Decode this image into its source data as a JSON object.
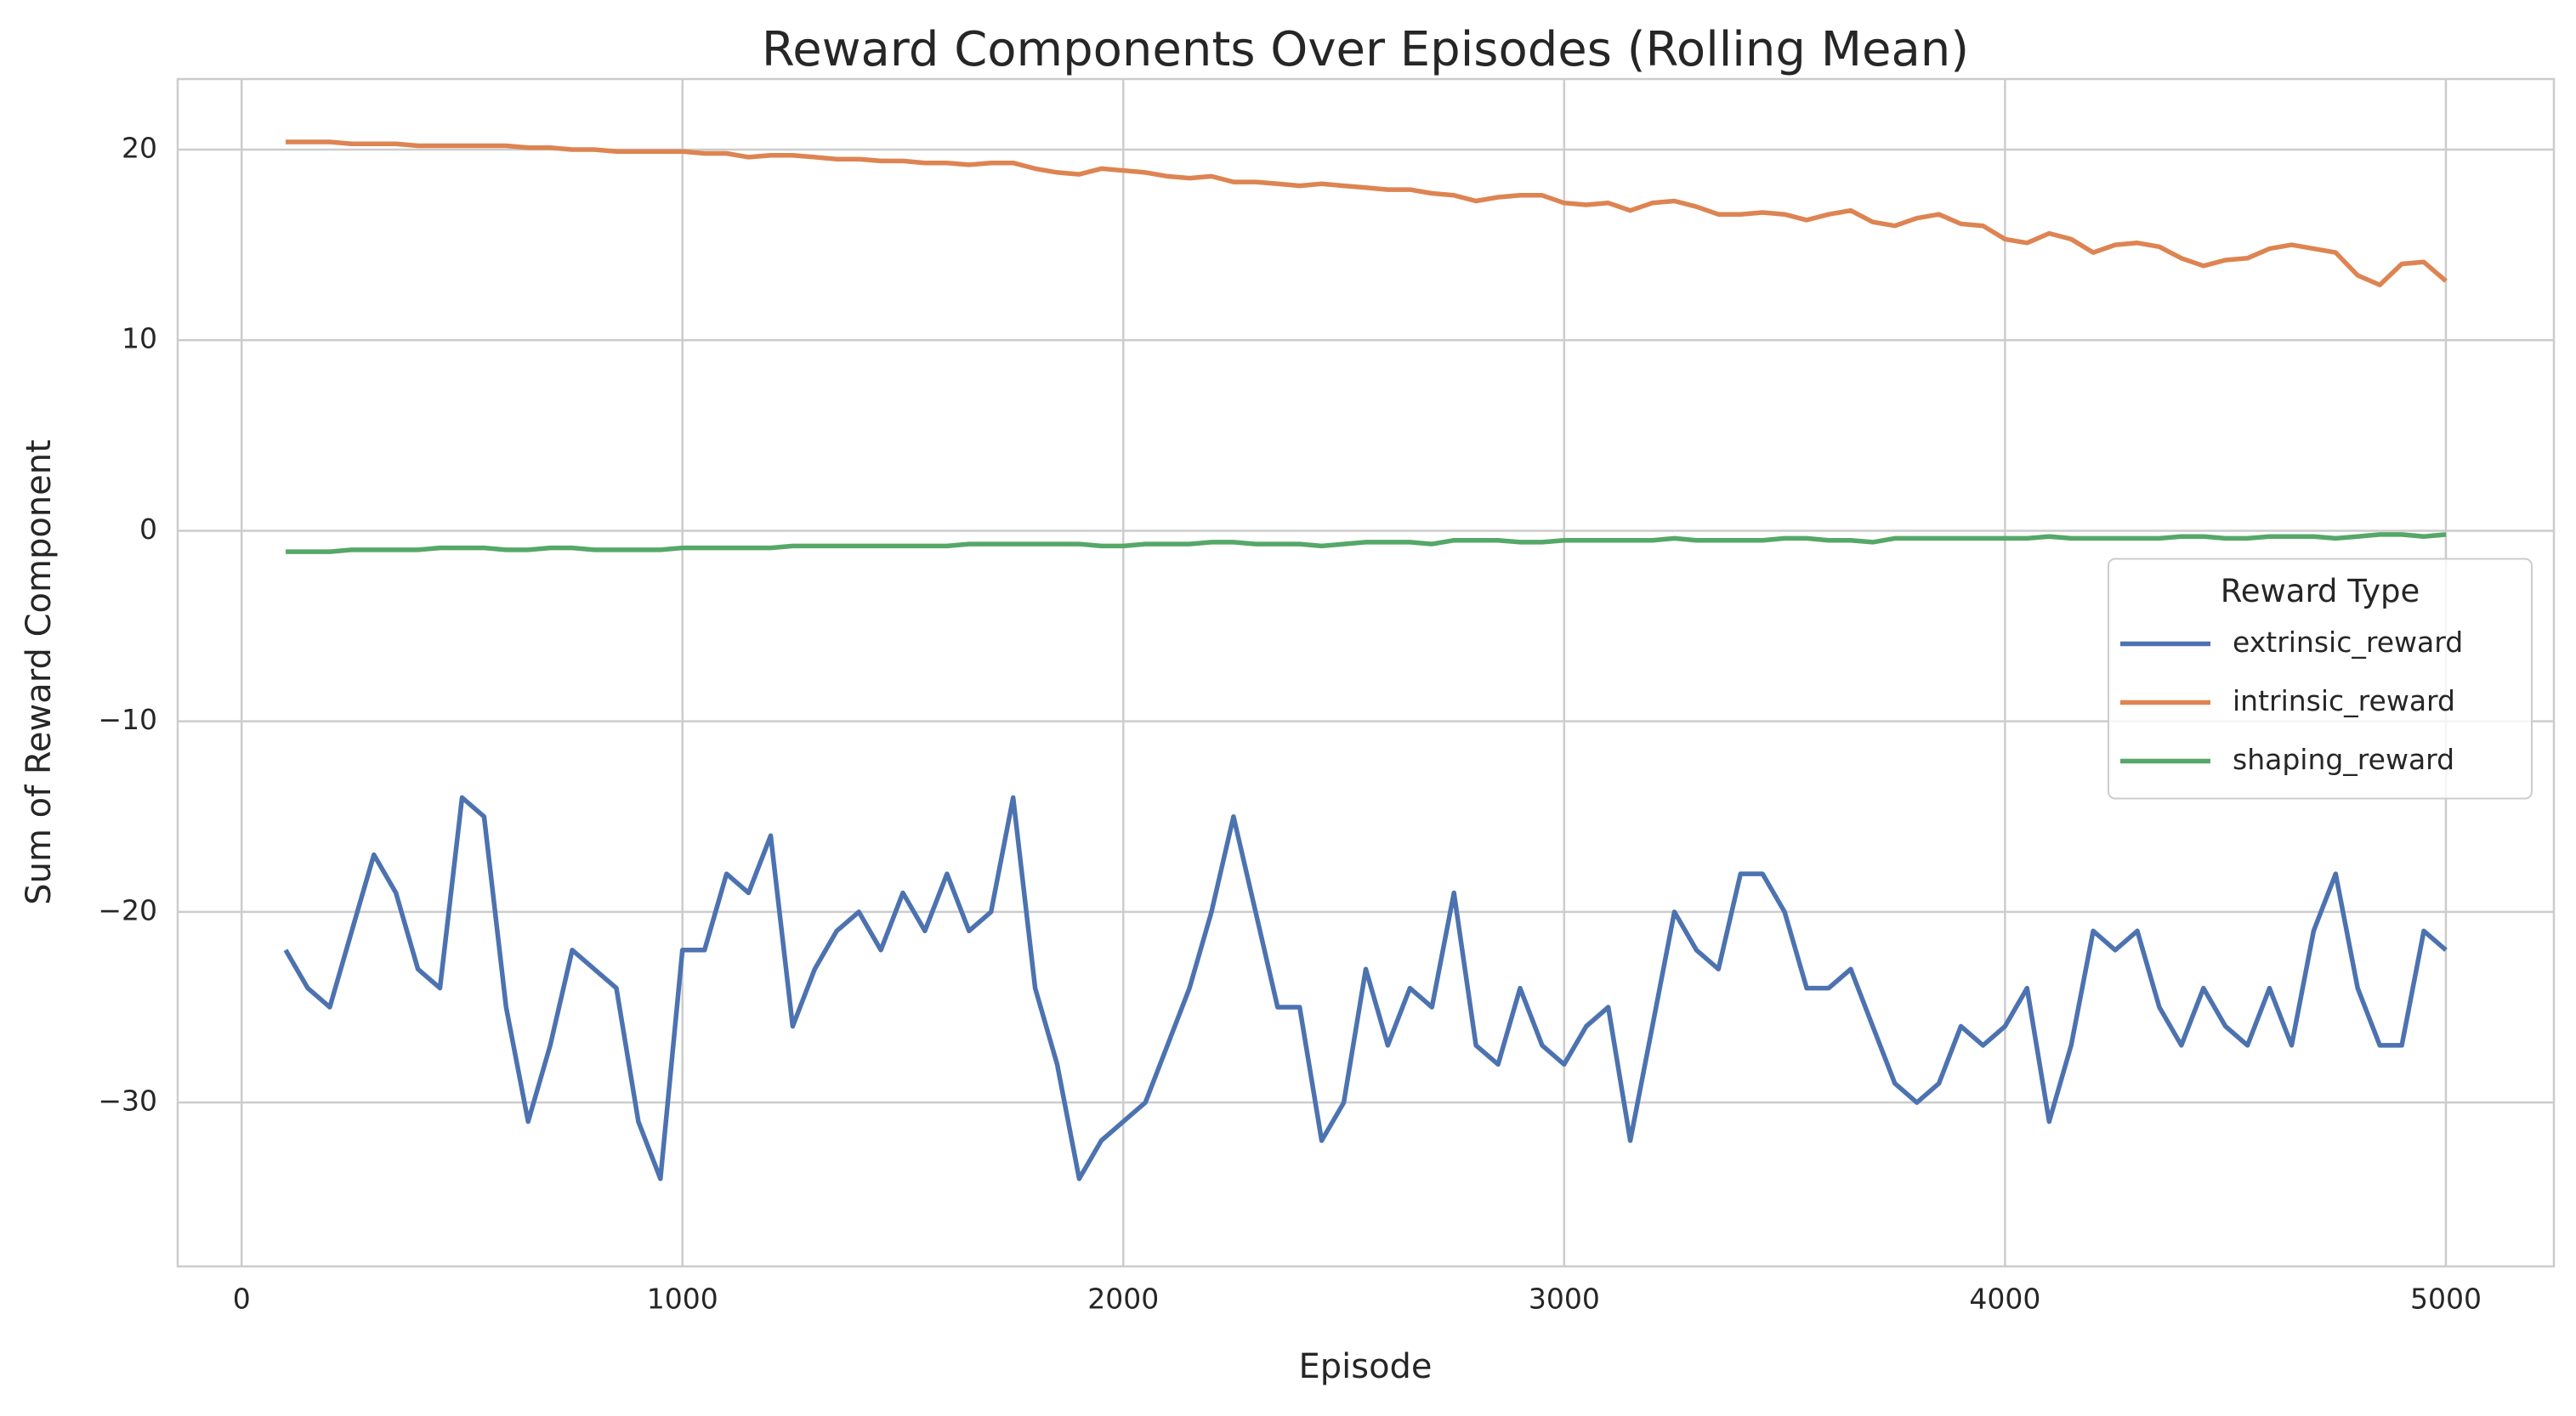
{
  "chart_data": {
    "type": "line",
    "title": "Reward Components Over Episodes (Rolling Mean)",
    "x_label": "Episode",
    "y_label": "Sum of Reward Component",
    "legend_title": "Reward Type",
    "legend": "center right",
    "grid": true,
    "xlim": [
      -145,
      5245
    ],
    "xticks": [
      0,
      1000,
      2000,
      3000,
      4000,
      5000
    ],
    "ylim": [
      -38.6,
      23.7
    ],
    "yticks": [
      {
        "value": -30,
        "label": "−30"
      },
      {
        "value": -20,
        "label": "−20"
      },
      {
        "value": -10,
        "label": "−10"
      },
      0,
      10,
      20
    ],
    "x": [
      100,
      150,
      200,
      250,
      300,
      350,
      400,
      450,
      500,
      550,
      600,
      650,
      700,
      750,
      800,
      850,
      900,
      950,
      1000,
      1050,
      1100,
      1150,
      1200,
      1250,
      1300,
      1350,
      1400,
      1450,
      1500,
      1550,
      1600,
      1650,
      1700,
      1750,
      1800,
      1850,
      1900,
      1950,
      2000,
      2050,
      2100,
      2150,
      2200,
      2250,
      2300,
      2350,
      2400,
      2450,
      2500,
      2550,
      2600,
      2650,
      2700,
      2750,
      2800,
      2850,
      2900,
      2950,
      3000,
      3050,
      3100,
      3150,
      3200,
      3250,
      3300,
      3350,
      3400,
      3450,
      3500,
      3550,
      3600,
      3650,
      3700,
      3750,
      3800,
      3850,
      3900,
      3950,
      4000,
      4050,
      4100,
      4150,
      4200,
      4250,
      4300,
      4350,
      4400,
      4450,
      4500,
      4550,
      4600,
      4650,
      4700,
      4750,
      4800,
      4850,
      4900,
      4950,
      5000
    ],
    "series": [
      {
        "name": "extrinsic_reward",
        "color": "#4c72b0",
        "values": [
          -22,
          -24,
          -25,
          -21,
          -17,
          -19,
          -23,
          -24,
          -14,
          -15,
          -25,
          -31,
          -27,
          -22,
          -23,
          -24,
          -31,
          -34,
          -22,
          -22,
          -18,
          -19,
          -16,
          -26,
          -23,
          -21,
          -20,
          -22,
          -19,
          -21,
          -18,
          -21,
          -20,
          -14,
          -24,
          -28,
          -34,
          -32,
          -31,
          -30,
          -27,
          -24,
          -20,
          -15,
          -20,
          -25,
          -25,
          -32,
          -30,
          -23,
          -27,
          -24,
          -25,
          -19,
          -27,
          -28,
          -24,
          -27,
          -28,
          -26,
          -25,
          -32,
          -26,
          -20,
          -22,
          -23,
          -18,
          -18,
          -20,
          -24,
          -24,
          -23,
          -26,
          -29,
          -30,
          -29,
          -26,
          -27,
          -26,
          -24,
          -31,
          -27,
          -21,
          -22,
          -21,
          -25,
          -27,
          -24,
          -26,
          -27,
          -24,
          -27,
          -21,
          -18,
          -24,
          -27,
          -27,
          -21,
          -22
        ]
      },
      {
        "name": "intrinsic_reward",
        "color": "#dd8452",
        "values": [
          20.4,
          20.4,
          20.4,
          20.3,
          20.3,
          20.3,
          20.2,
          20.2,
          20.2,
          20.2,
          20.2,
          20.1,
          20.1,
          20.0,
          20.0,
          19.9,
          19.9,
          19.9,
          19.9,
          19.8,
          19.8,
          19.6,
          19.7,
          19.7,
          19.6,
          19.5,
          19.5,
          19.4,
          19.4,
          19.3,
          19.3,
          19.2,
          19.3,
          19.3,
          19.0,
          18.8,
          18.7,
          19.0,
          18.9,
          18.8,
          18.6,
          18.5,
          18.6,
          18.3,
          18.3,
          18.2,
          18.1,
          18.2,
          18.1,
          18.0,
          17.9,
          17.9,
          17.7,
          17.6,
          17.3,
          17.5,
          17.6,
          17.6,
          17.2,
          17.1,
          17.2,
          16.8,
          17.2,
          17.3,
          17.0,
          16.6,
          16.6,
          16.7,
          16.6,
          16.3,
          16.6,
          16.8,
          16.2,
          16.0,
          16.4,
          16.6,
          16.1,
          16.0,
          15.3,
          15.1,
          15.6,
          15.3,
          14.6,
          15.0,
          15.1,
          14.9,
          14.3,
          13.9,
          14.2,
          14.3,
          14.8,
          15.0,
          14.8,
          14.6,
          13.4,
          12.9,
          14.0,
          14.1,
          13.1
        ]
      },
      {
        "name": "shaping_reward",
        "color": "#55a868",
        "values": [
          -1.1,
          -1.1,
          -1.1,
          -1.0,
          -1.0,
          -1.0,
          -1.0,
          -0.9,
          -0.9,
          -0.9,
          -1.0,
          -1.0,
          -0.9,
          -0.9,
          -1.0,
          -1.0,
          -1.0,
          -1.0,
          -0.9,
          -0.9,
          -0.9,
          -0.9,
          -0.9,
          -0.8,
          -0.8,
          -0.8,
          -0.8,
          -0.8,
          -0.8,
          -0.8,
          -0.8,
          -0.7,
          -0.7,
          -0.7,
          -0.7,
          -0.7,
          -0.7,
          -0.8,
          -0.8,
          -0.7,
          -0.7,
          -0.7,
          -0.6,
          -0.6,
          -0.7,
          -0.7,
          -0.7,
          -0.8,
          -0.7,
          -0.6,
          -0.6,
          -0.6,
          -0.7,
          -0.5,
          -0.5,
          -0.5,
          -0.6,
          -0.6,
          -0.5,
          -0.5,
          -0.5,
          -0.5,
          -0.5,
          -0.4,
          -0.5,
          -0.5,
          -0.5,
          -0.5,
          -0.4,
          -0.4,
          -0.5,
          -0.5,
          -0.6,
          -0.4,
          -0.4,
          -0.4,
          -0.4,
          -0.4,
          -0.4,
          -0.4,
          -0.3,
          -0.4,
          -0.4,
          -0.4,
          -0.4,
          -0.4,
          -0.3,
          -0.3,
          -0.4,
          -0.4,
          -0.3,
          -0.3,
          -0.3,
          -0.4,
          -0.3,
          -0.2,
          -0.2,
          -0.3,
          -0.2
        ]
      }
    ]
  }
}
